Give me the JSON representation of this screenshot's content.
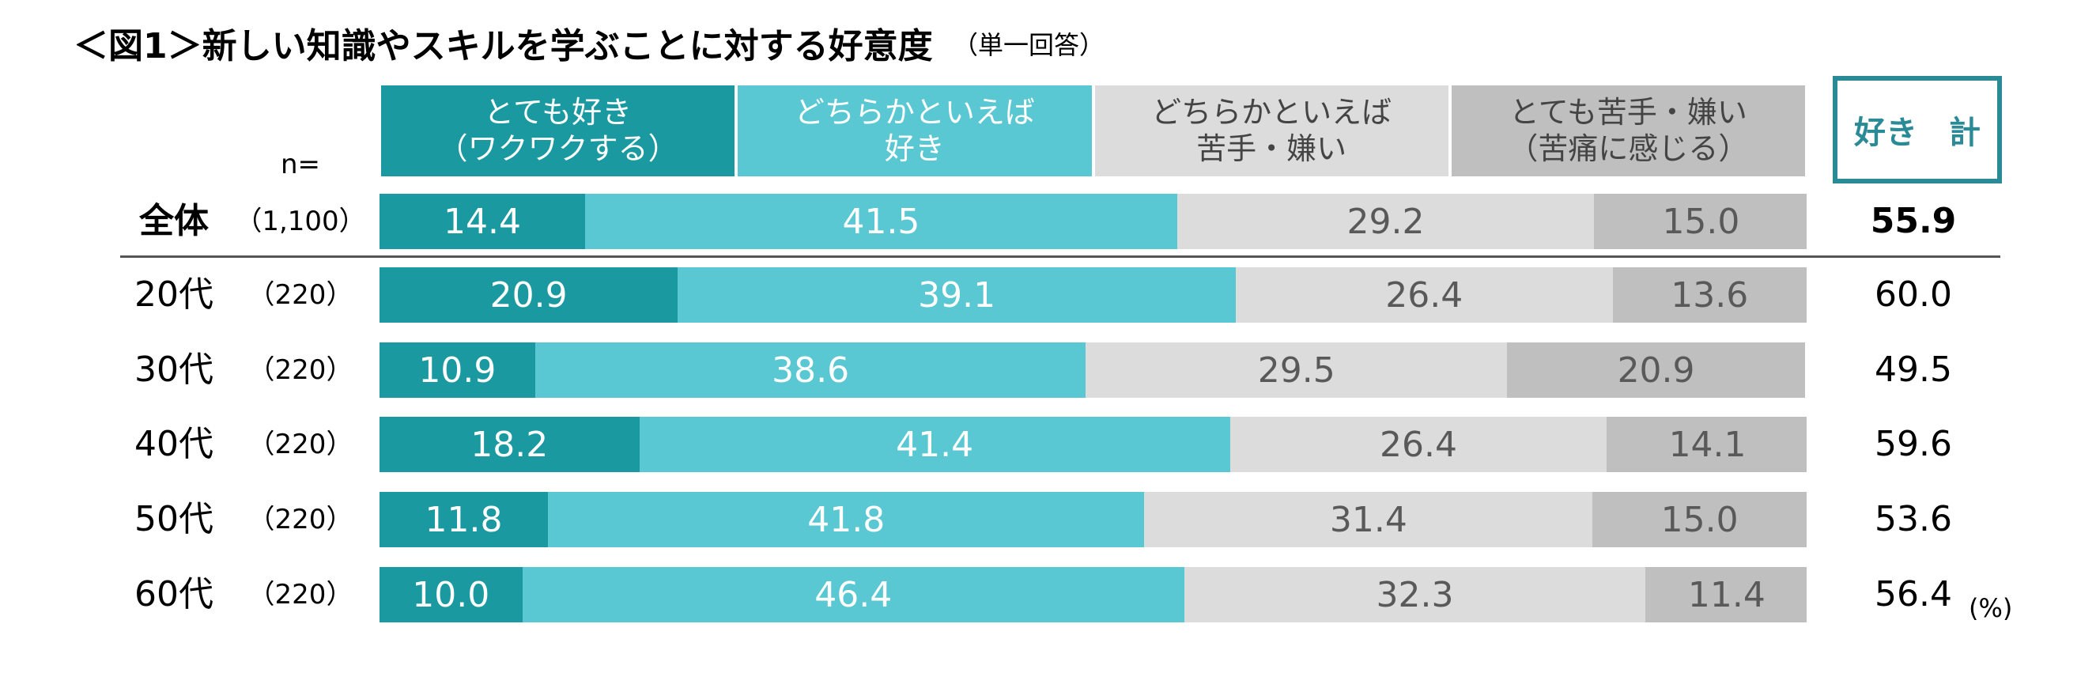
{
  "chart_data": {
    "type": "stacked_bar_100",
    "title": "＜図1＞新しい知識やスキルを学ぶことに対する好意度",
    "subtitle": "（単一回答）",
    "n_label": "n=",
    "categories": [
      "全体",
      "20代",
      "30代",
      "40代",
      "50代",
      "60代"
    ],
    "n_values": [
      "（1,100）",
      "（220）",
      "（220）",
      "（220）",
      "（220）",
      "（220）"
    ],
    "xlim": [
      0,
      100
    ],
    "series": [
      {
        "name": "とても好き\n（ワクワクする）",
        "color": "#1a9aa0",
        "values": [
          14.4,
          20.9,
          10.9,
          18.2,
          11.8,
          10.0
        ],
        "value_labels": [
          "14.4",
          "20.9",
          "10.9",
          "18.2",
          "11.8",
          "10.0"
        ]
      },
      {
        "name": "どちらかといえば\n好き",
        "color": "#5ac8d2",
        "values": [
          41.5,
          39.1,
          38.6,
          41.4,
          41.8,
          46.4
        ],
        "value_labels": [
          "41.5",
          "39.1",
          "38.6",
          "41.4",
          "41.8",
          "46.4"
        ]
      },
      {
        "name": "どちらかといえば\n苦手・嫌い",
        "color": "#dcdcdc",
        "values": [
          29.2,
          26.4,
          29.5,
          26.4,
          31.4,
          32.3
        ],
        "value_labels": [
          "29.2",
          "26.4",
          "29.5",
          "26.4",
          "31.4",
          "32.3"
        ]
      },
      {
        "name": "とても苦手・嫌い\n（苦痛に感じる）",
        "color": "#bfbfbf",
        "values": [
          15.0,
          13.6,
          20.9,
          14.1,
          15.0,
          11.4
        ],
        "value_labels": [
          "15.0",
          "13.6",
          "20.9",
          "14.1",
          "15.0",
          "11.4"
        ]
      }
    ],
    "total_label": "好き　計",
    "totals": [
      55.9,
      60.0,
      49.5,
      59.6,
      53.6,
      56.4
    ],
    "total_labels": [
      "55.9",
      "60.0",
      "49.5",
      "59.6",
      "53.6",
      "56.4"
    ],
    "unit": "(%)"
  }
}
